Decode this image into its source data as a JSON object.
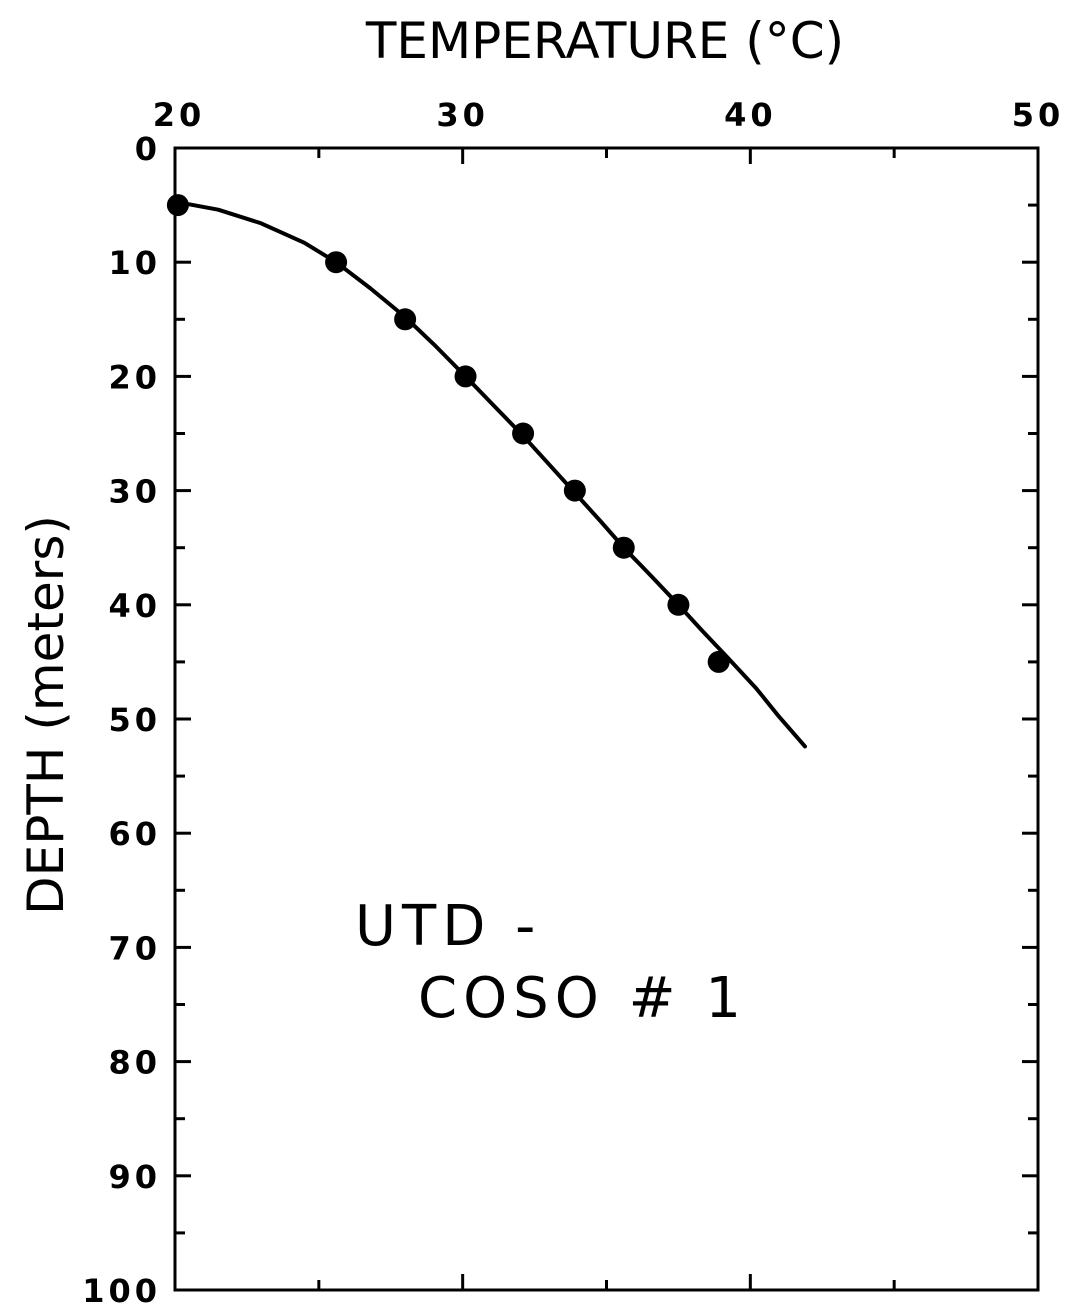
{
  "chart_data": {
    "type": "scatter",
    "title": "",
    "xlabel": "TEMPERATURE (°C)",
    "ylabel": "DEPTH (meters)",
    "x_axis_position": "top",
    "y_axis_inverted": true,
    "xlim": [
      20,
      50
    ],
    "ylim": [
      0,
      100
    ],
    "x_ticks": [
      20,
      30,
      40,
      50
    ],
    "y_ticks": [
      0,
      10,
      20,
      30,
      40,
      50,
      60,
      70,
      80,
      90,
      100
    ],
    "x_tick_labels": [
      "20",
      "30",
      "40",
      "50"
    ],
    "y_tick_labels": [
      "0",
      "10",
      "20",
      "30",
      "40",
      "50",
      "60",
      "70",
      "80",
      "90",
      "100"
    ],
    "grid": false,
    "annotation": [
      "UTD -",
      "COSO # 1"
    ],
    "series": [
      {
        "kind": "points",
        "x": [
          20.1,
          25.6,
          28.0,
          30.1,
          32.1,
          33.9,
          35.6,
          37.5,
          38.9
        ],
        "y": [
          5,
          10,
          15,
          20,
          25,
          30,
          35,
          40,
          45
        ]
      },
      {
        "kind": "curve",
        "x": [
          20.0,
          21.5,
          23.0,
          24.5,
          25.6,
          26.8,
          28.0,
          29.0,
          30.1,
          31.1,
          32.1,
          33.0,
          33.9,
          34.8,
          35.6,
          36.6,
          37.5,
          38.3,
          39.2,
          40.2,
          41.0,
          41.9
        ],
        "y": [
          4.7,
          5.4,
          6.6,
          8.3,
          10.0,
          12.3,
          14.8,
          17.2,
          20.0,
          22.6,
          25.2,
          27.7,
          30.2,
          32.7,
          35.0,
          37.6,
          40.0,
          42.2,
          44.6,
          47.3,
          49.8,
          52.4
        ]
      }
    ]
  }
}
